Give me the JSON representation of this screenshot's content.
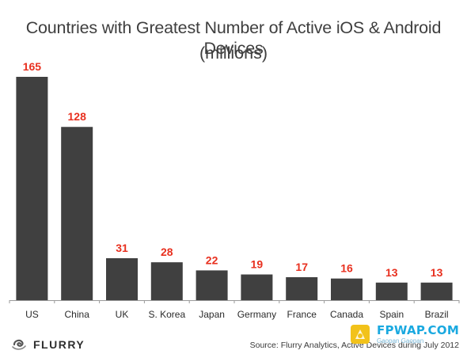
{
  "title": "Countries with Greatest Number of Active iOS & Android Devices",
  "subtitle": "(millions)",
  "chart_data": {
    "type": "bar",
    "title": "Countries with Greatest Number of Active iOS & Android Devices",
    "subtitle": "(millions)",
    "xlabel": "",
    "ylabel": "",
    "categories": [
      "US",
      "China",
      "UK",
      "S. Korea",
      "Japan",
      "Germany",
      "France",
      "Canada",
      "Spain",
      "Brazil"
    ],
    "values": [
      165,
      128,
      31,
      28,
      22,
      19,
      17,
      16,
      13,
      13
    ],
    "data_labels": [
      "165",
      "128",
      "31",
      "28",
      "22",
      "19",
      "17",
      "16",
      "13",
      "13"
    ],
    "ylim": [
      0,
      165
    ],
    "grid": false,
    "legend": "none",
    "bar_color": "#404040",
    "label_color": "#e8301f"
  },
  "footer": {
    "logo_text": "FLURRY",
    "source": "Source: Flurry Analytics, Active Devices during July 2012"
  },
  "watermark": {
    "site": "FPWAP.COM",
    "sub": "Gaopan Gaopan"
  }
}
